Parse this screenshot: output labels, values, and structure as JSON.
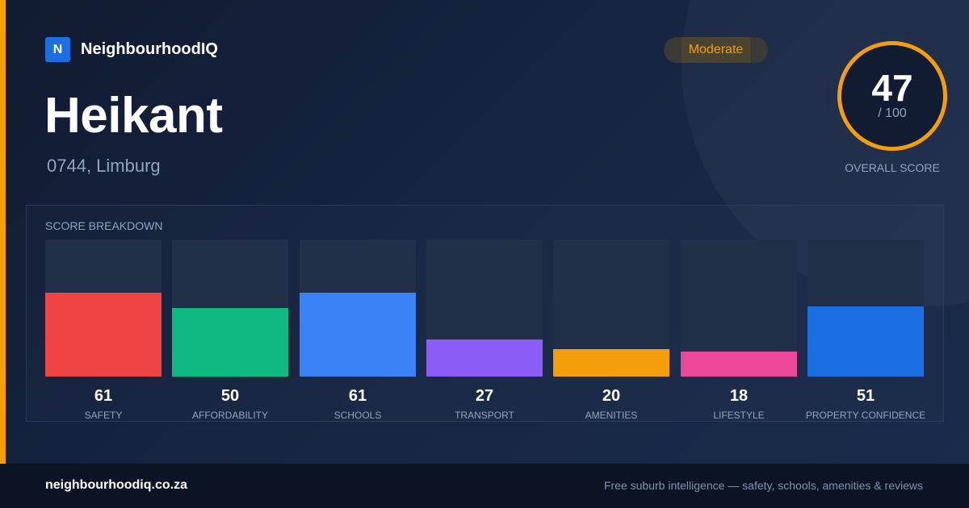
{
  "brand": {
    "logo_letter": "N",
    "name": "NeighbourhoodIQ",
    "logo_color": "#1c6fe0"
  },
  "header": {
    "title": "Heikant",
    "subtitle": "0744, Limburg"
  },
  "badge": {
    "label": "Moderate",
    "color": "#f59e0b"
  },
  "overall": {
    "value": "47",
    "max": "/ 100",
    "label": "OVERALL SCORE",
    "ring_color": "#f59e0b"
  },
  "breakdown": {
    "title": "SCORE BREAKDOWN",
    "items": [
      {
        "label": "SAFETY",
        "value": 61,
        "color": "#ef4444"
      },
      {
        "label": "AFFORDABILITY",
        "value": 50,
        "color": "#10b981"
      },
      {
        "label": "SCHOOLS",
        "value": 61,
        "color": "#3b82f6"
      },
      {
        "label": "TRANSPORT",
        "value": 27,
        "color": "#8b5cf6"
      },
      {
        "label": "AMENITIES",
        "value": 20,
        "color": "#f59e0b"
      },
      {
        "label": "LIFESTYLE",
        "value": 18,
        "color": "#ec4899"
      },
      {
        "label": "PROPERTY CONFIDENCE",
        "value": 51,
        "color": "#1c6fe0"
      }
    ]
  },
  "footer": {
    "site": "neighbourhoodiq.co.za",
    "tagline": "Free suburb intelligence — safety, schools, amenities & reviews"
  }
}
